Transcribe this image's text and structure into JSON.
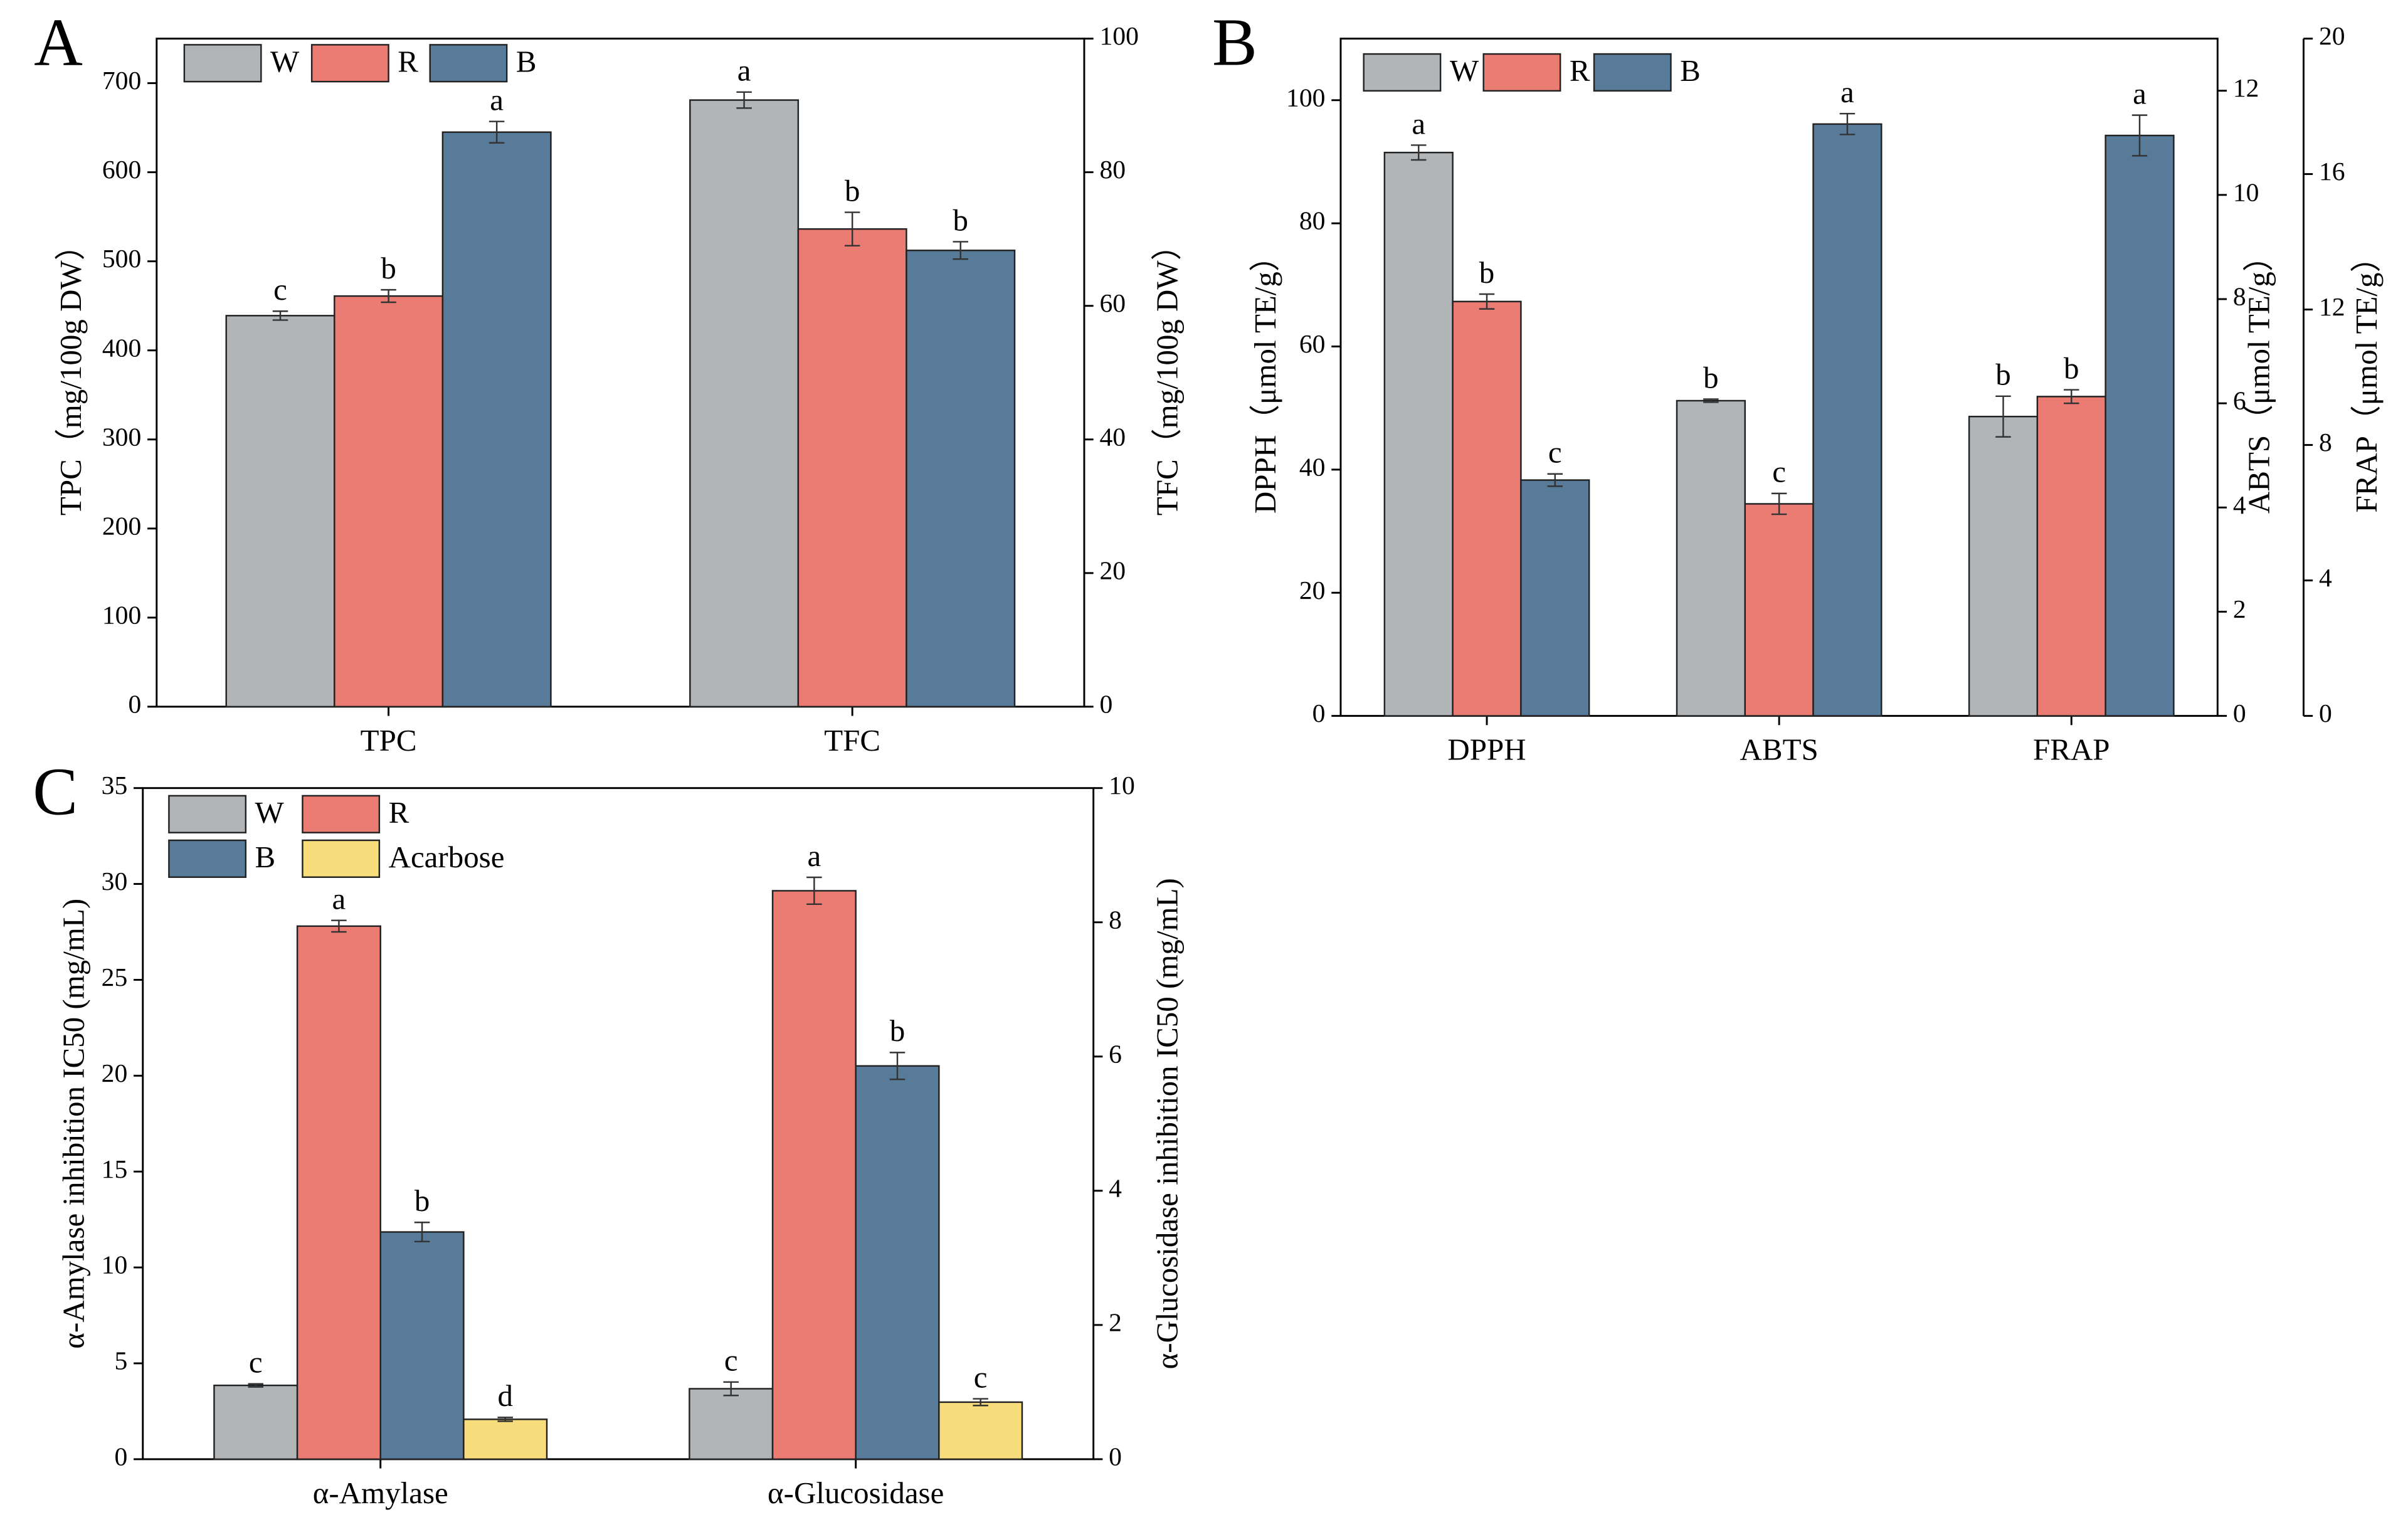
{
  "chart_data": [
    {
      "type": "bar",
      "panel": "A",
      "categories": [
        "TPC",
        "TFC"
      ],
      "category_axes": [
        "y",
        "y2"
      ],
      "ylabel": "TPC（mg/100g DW）",
      "y2label": "TFC（mg/100g DW）",
      "ylim": [
        0,
        750
      ],
      "yticks": [
        0,
        100,
        200,
        300,
        400,
        500,
        600,
        700
      ],
      "y2lim": [
        0,
        100
      ],
      "y2ticks": [
        0,
        20,
        40,
        60,
        80,
        100
      ],
      "series": [
        {
          "name": "W",
          "color": "#b1b5b8",
          "values": [
            439,
            90.8
          ],
          "errors": [
            5,
            1.2
          ],
          "letters": [
            "c",
            "a"
          ]
        },
        {
          "name": "R",
          "color": "#ea7c74",
          "values": [
            461,
            71.5
          ],
          "errors": [
            7,
            2.5
          ],
          "letters": [
            "b",
            "b"
          ]
        },
        {
          "name": "B",
          "color": "#587b9a",
          "values": [
            645,
            68.3
          ],
          "errors": [
            12,
            1.3
          ],
          "letters": [
            "a",
            "b"
          ]
        }
      ]
    },
    {
      "type": "bar",
      "panel": "B",
      "categories": [
        "DPPH",
        "ABTS",
        "FRAP"
      ],
      "category_axes": [
        "y",
        "y2",
        "y3"
      ],
      "ylabel": "DPPH（μmol TE/g）",
      "y2label": "ABTS（μmol TE/g）",
      "y3label": "FRAP（μmol TE/g）",
      "ylim": [
        0,
        110
      ],
      "yticks": [
        0,
        20,
        40,
        60,
        80,
        100
      ],
      "y2lim": [
        0,
        13
      ],
      "y2ticks": [
        0,
        2,
        4,
        6,
        8,
        10,
        12
      ],
      "y3lim": [
        0,
        20
      ],
      "y3ticks": [
        0,
        4,
        8,
        12,
        16,
        20
      ],
      "series": [
        {
          "name": "W",
          "color": "#b1b5b8",
          "values": [
            91.5,
            6.05,
            8.84
          ],
          "errors": [
            1.2,
            0.03,
            0.6
          ],
          "letters": [
            "a",
            "b",
            "b"
          ]
        },
        {
          "name": "R",
          "color": "#ea7c74",
          "values": [
            67.3,
            4.07,
            9.43
          ],
          "errors": [
            1.2,
            0.2,
            0.2
          ],
          "letters": [
            "b",
            "c",
            "b"
          ]
        },
        {
          "name": "B",
          "color": "#587b9a",
          "values": [
            38.3,
            11.36,
            17.14
          ],
          "errors": [
            1.0,
            0.2,
            0.6
          ],
          "letters": [
            "c",
            "a",
            "a"
          ]
        }
      ]
    },
    {
      "type": "bar",
      "panel": "C",
      "categories": [
        "α-Amylase",
        "α-Glucosidase"
      ],
      "category_axes": [
        "y",
        "y2"
      ],
      "ylabel": "α-Amylase inhibition IC50 (mg/mL)",
      "y2label": "α-Glucosidase inhibition IC50 (mg/mL)",
      "ylim": [
        0,
        35
      ],
      "yticks": [
        0,
        5,
        10,
        15,
        20,
        25,
        30,
        35
      ],
      "y2lim": [
        0,
        10
      ],
      "y2ticks": [
        0,
        2,
        4,
        6,
        8,
        10
      ],
      "series": [
        {
          "name": "W",
          "color": "#b1b5b8",
          "values": [
            3.85,
            1.05
          ],
          "errors": [
            0.08,
            0.1
          ],
          "letters": [
            "c",
            "c"
          ]
        },
        {
          "name": "R",
          "color": "#ea7c74",
          "values": [
            27.8,
            8.47
          ],
          "errors": [
            0.3,
            0.2
          ],
          "letters": [
            "a",
            "a"
          ]
        },
        {
          "name": "B",
          "color": "#587b9a",
          "values": [
            11.85,
            5.86
          ],
          "errors": [
            0.5,
            0.2
          ],
          "letters": [
            "b",
            "b"
          ]
        },
        {
          "name": "Acarbose",
          "color": "#f8dd7c",
          "values": [
            2.08,
            0.85
          ],
          "errors": [
            0.1,
            0.05
          ],
          "letters": [
            "d",
            "c"
          ]
        }
      ]
    }
  ]
}
